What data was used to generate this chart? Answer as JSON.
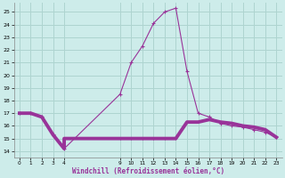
{
  "xlabel": "Windchill (Refroidissement éolien,°C)",
  "background_color": "#cdecea",
  "grid_color": "#aed4d0",
  "line_color": "#993399",
  "xlim": [
    -0.5,
    23.5
  ],
  "ylim": [
    13.5,
    25.7
  ],
  "yticks": [
    14,
    15,
    16,
    17,
    18,
    19,
    20,
    21,
    22,
    23,
    24,
    25
  ],
  "xtick_positions": [
    0,
    1,
    2,
    3,
    4,
    9,
    10,
    11,
    12,
    13,
    14,
    15,
    16,
    17,
    18,
    19,
    20,
    21,
    22,
    23
  ],
  "temp_hours": [
    0,
    1,
    2,
    3,
    4,
    9,
    10,
    11,
    12,
    13,
    14,
    15,
    16,
    17,
    18,
    19,
    20,
    21,
    22,
    23
  ],
  "temp_vals": [
    17,
    17,
    16.7,
    15.3,
    14.2,
    18.5,
    21,
    22.3,
    24.1,
    25.0,
    25.3,
    20.3,
    17.0,
    16.7,
    16.2,
    16.0,
    15.9,
    15.7,
    15.5,
    15.1
  ],
  "wc_hours": [
    0,
    1,
    2,
    3,
    4,
    4,
    9,
    10,
    11,
    12,
    13,
    14,
    15,
    16,
    17,
    18,
    19,
    20,
    21,
    22,
    23
  ],
  "wc_vals": [
    17,
    17,
    16.7,
    15.3,
    14.2,
    15.0,
    15.0,
    15.0,
    15.0,
    15.0,
    15.0,
    15.0,
    16.3,
    16.3,
    16.5,
    16.3,
    16.2,
    16.0,
    15.9,
    15.7,
    15.1
  ]
}
